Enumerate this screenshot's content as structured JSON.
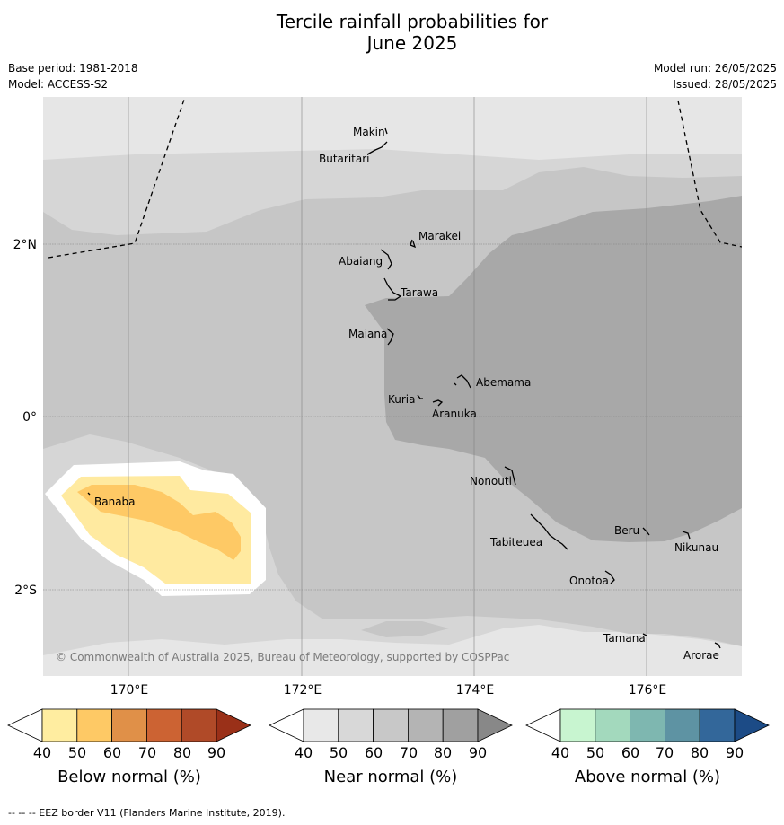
{
  "header": {
    "title_line1": "Tercile rainfall probabilities for",
    "title_line2": "June 2025",
    "base_period": "Base period: 1981-2018",
    "model": "Model: ACCESS-S2",
    "model_run": "Model run: 26/05/2025",
    "issued": "Issued: 28/05/2025"
  },
  "map": {
    "lon_labels": [
      "170°E",
      "172°E",
      "174°E",
      "176°E"
    ],
    "lat_labels": [
      "2°N",
      "0°",
      "2°S"
    ],
    "islands": [
      "Makin",
      "Butaritari",
      "Marakei",
      "Abaiang",
      "Tarawa",
      "Maiana",
      "Abemama",
      "Kuria",
      "Aranuka",
      "Banaba",
      "Nonouti",
      "Beru",
      "Tabiteuea",
      "Nikunau",
      "Onotoa",
      "Tamana",
      "Arorae"
    ],
    "copyright": "© Commonwealth of Australia 2025, Bureau of Meteorology, supported by COSPPac",
    "colors": {
      "near_40_50": "#e6e6e6",
      "near_50_60": "#d6d6d6",
      "near_60_70": "#c6c6c6",
      "near_70_80": "#a8a8a8",
      "below_40_50": "#ffffff",
      "below_50_60": "#ffeaa0",
      "below_60_70": "#fec965"
    }
  },
  "legends": [
    {
      "label": "Below normal (%)",
      "ticks": [
        "40",
        "50",
        "60",
        "70",
        "80",
        "90"
      ],
      "colors": [
        "#ffffff",
        "#ffeda0",
        "#fec965",
        "#e09048",
        "#cc6333",
        "#b04a28",
        "#9a3018"
      ]
    },
    {
      "label": "Near normal (%)",
      "ticks": [
        "40",
        "50",
        "60",
        "70",
        "80",
        "90"
      ],
      "colors": [
        "#ffffff",
        "#e8e8e8",
        "#d8d8d8",
        "#c8c8c8",
        "#b4b4b4",
        "#a0a0a0",
        "#888888"
      ]
    },
    {
      "label": "Above normal (%)",
      "ticks": [
        "40",
        "50",
        "60",
        "70",
        "80",
        "90"
      ],
      "colors": [
        "#ffffff",
        "#c8f5d0",
        "#a3d9bd",
        "#7eb7b0",
        "#5e93a3",
        "#33679a",
        "#1c4b86"
      ]
    }
  ],
  "footer": "--  --  -- EEZ border V11 (Flanders Marine Institute, 2019)."
}
